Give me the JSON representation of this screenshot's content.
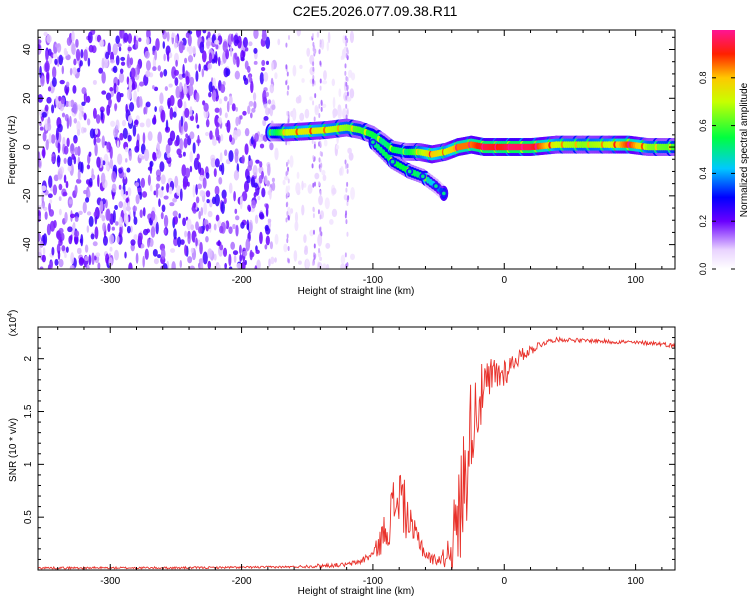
{
  "title": "C2E5.2026.077.09.38.R11",
  "chart_data": [
    {
      "type": "heatmap",
      "xlabel": "Height of straight line (km)",
      "ylabel": "Frequency (Hz)",
      "xlim": [
        -355,
        130
      ],
      "ylim": [
        -50,
        48
      ],
      "xticks": [
        -300,
        -200,
        -100,
        0,
        100
      ],
      "yticks": [
        -40,
        -20,
        0,
        20,
        40
      ],
      "colorbar": {
        "label": "Normalized spectral amplitude",
        "range": [
          0,
          1
        ],
        "ticks": [
          0.0,
          0.2,
          0.4,
          0.6,
          0.8
        ]
      },
      "noise_region_x": [
        -355,
        -115
      ],
      "ridge": [
        {
          "x": -178,
          "f": 6,
          "a": 0.45
        },
        {
          "x": -165,
          "f": 6,
          "a": 0.7
        },
        {
          "x": -150,
          "f": 6.5,
          "a": 0.75
        },
        {
          "x": -135,
          "f": 7,
          "a": 0.7
        },
        {
          "x": -120,
          "f": 8,
          "a": 0.65
        },
        {
          "x": -110,
          "f": 7,
          "a": 0.6
        },
        {
          "x": -100,
          "f": 5,
          "a": 0.55
        },
        {
          "x": -92,
          "f": 2,
          "a": 0.5
        },
        {
          "x": -85,
          "f": -1,
          "a": 0.55
        },
        {
          "x": -75,
          "f": -2,
          "a": 0.5
        },
        {
          "x": -65,
          "f": -2,
          "a": 0.65
        },
        {
          "x": -55,
          "f": -3,
          "a": 0.8
        },
        {
          "x": -45,
          "f": -2,
          "a": 0.7
        },
        {
          "x": -35,
          "f": 0,
          "a": 0.85
        },
        {
          "x": -25,
          "f": 1,
          "a": 0.85
        },
        {
          "x": -15,
          "f": 0,
          "a": 0.95
        },
        {
          "x": -5,
          "f": 0,
          "a": 0.9
        },
        {
          "x": 5,
          "f": 0,
          "a": 0.97
        },
        {
          "x": 20,
          "f": 0,
          "a": 0.95
        },
        {
          "x": 40,
          "f": 1,
          "a": 0.7
        },
        {
          "x": 60,
          "f": 1,
          "a": 0.65
        },
        {
          "x": 80,
          "f": 1,
          "a": 0.7
        },
        {
          "x": 95,
          "f": 1,
          "a": 0.9
        },
        {
          "x": 110,
          "f": 0,
          "a": 0.65
        },
        {
          "x": 130,
          "f": 0,
          "a": 0.6
        }
      ],
      "branch": [
        {
          "x": -100,
          "f": 2,
          "a": 0.5
        },
        {
          "x": -85,
          "f": -6,
          "a": 0.55
        },
        {
          "x": -72,
          "f": -10,
          "a": 0.55
        },
        {
          "x": -62,
          "f": -12,
          "a": 0.5
        },
        {
          "x": -52,
          "f": -16,
          "a": 0.4
        },
        {
          "x": -46,
          "f": -19,
          "a": 0.3
        }
      ]
    },
    {
      "type": "line",
      "xlabel": "Height of straight line (km)",
      "ylabel": "SNR (10 * v/v)",
      "yunit": "(x10",
      "yunit_exponent": "4",
      "xlim": [
        -355,
        130
      ],
      "ylim": [
        0,
        2.3
      ],
      "xticks": [
        -300,
        -200,
        -100,
        0,
        100
      ],
      "yticks": [
        0.5,
        1.0,
        1.5,
        2.0
      ],
      "series": [
        {
          "color": "#e8312a",
          "x": [
            -355,
            -300,
            -250,
            -200,
            -160,
            -140,
            -120,
            -110,
            -100,
            -95,
            -90,
            -85,
            -80,
            -75,
            -70,
            -65,
            -60,
            -55,
            -50,
            -45,
            -40,
            -35,
            -30,
            -27,
            -25,
            -22,
            -20,
            -17,
            -15,
            -12,
            -10,
            -8,
            -5,
            -3,
            0,
            3,
            5,
            10,
            15,
            20,
            25,
            30,
            35,
            40,
            50,
            60,
            70,
            80,
            90,
            100,
            110,
            120,
            130
          ],
          "y": [
            0.02,
            0.02,
            0.02,
            0.025,
            0.03,
            0.04,
            0.05,
            0.08,
            0.15,
            0.25,
            0.4,
            0.55,
            0.75,
            0.55,
            0.35,
            0.3,
            0.15,
            0.1,
            0.1,
            0.12,
            0.25,
            0.45,
            0.9,
            1.2,
            1.4,
            1.5,
            1.6,
            1.65,
            1.7,
            1.75,
            1.8,
            1.85,
            1.85,
            1.85,
            1.88,
            1.9,
            1.95,
            2.0,
            2.05,
            2.08,
            2.12,
            2.15,
            2.17,
            2.18,
            2.18,
            2.17,
            2.17,
            2.16,
            2.16,
            2.15,
            2.15,
            2.14,
            2.12
          ],
          "noise_amplitude": [
            0.01,
            0.01,
            0.01,
            0.01,
            0.01,
            0.02,
            0.02,
            0.03,
            0.05,
            0.12,
            0.2,
            0.3,
            0.35,
            0.25,
            0.15,
            0.12,
            0.08,
            0.05,
            0.05,
            0.1,
            0.3,
            0.5,
            0.6,
            0.55,
            0.45,
            0.4,
            0.35,
            0.3,
            0.28,
            0.25,
            0.22,
            0.2,
            0.18,
            0.16,
            0.15,
            0.12,
            0.1,
            0.08,
            0.06,
            0.05,
            0.04,
            0.03,
            0.02,
            0.02,
            0.02,
            0.02,
            0.02,
            0.02,
            0.02,
            0.02,
            0.02,
            0.02,
            0.02
          ]
        }
      ]
    }
  ]
}
